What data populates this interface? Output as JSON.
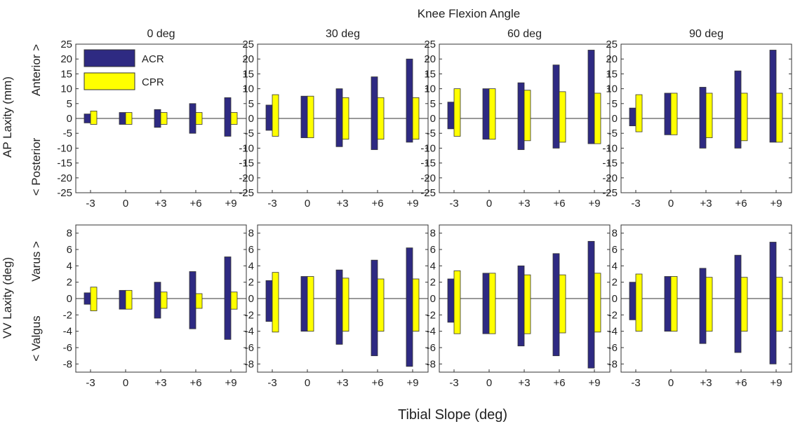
{
  "figure": {
    "title": "Knee Flexion Angle",
    "xlabel": "Tibial Slope (deg)",
    "row_labels": {
      "ap": {
        "main": "AP Laxity (mm)",
        "pos": "Anterior >",
        "neg": "< Posterior"
      },
      "vv": {
        "main": "VV Laxity (deg)",
        "pos": "Varus >",
        "neg": "< Valgus"
      }
    }
  },
  "colors": {
    "ACR": "#2e2a82",
    "CPR": "#ffff00",
    "stroke": "#333333"
  },
  "chart_data": [
    {
      "type": "bar",
      "title": "0 deg",
      "row": "ap",
      "categories": [
        "-3",
        "0",
        "+3",
        "+6",
        "+9"
      ],
      "ylim": [
        -25,
        25
      ],
      "yticks": [
        25,
        20,
        15,
        10,
        5,
        0,
        -5,
        -10,
        -15,
        -20,
        -25
      ],
      "legend": [
        "ACR",
        "CPR"
      ],
      "legend_position": "top-left",
      "series": [
        {
          "name": "ACR",
          "high": [
            1.5,
            2,
            3,
            5,
            7
          ],
          "low": [
            -1.5,
            -2,
            -3,
            -5,
            -6
          ]
        },
        {
          "name": "CPR",
          "high": [
            2.5,
            2,
            2,
            2,
            2
          ],
          "low": [
            -2,
            -2,
            -2,
            -2,
            -2
          ]
        }
      ]
    },
    {
      "type": "bar",
      "title": "30 deg",
      "row": "ap",
      "categories": [
        "-3",
        "0",
        "+3",
        "+6",
        "+9"
      ],
      "ylim": [
        -25,
        25
      ],
      "yticks": [
        25,
        20,
        15,
        10,
        5,
        0,
        -5,
        -10,
        -15,
        -20,
        -25
      ],
      "series": [
        {
          "name": "ACR",
          "high": [
            4.5,
            7.5,
            10,
            14,
            20
          ],
          "low": [
            -4,
            -6.5,
            -9.5,
            -10.5,
            -8
          ]
        },
        {
          "name": "CPR",
          "high": [
            8,
            7.5,
            7,
            7,
            7
          ],
          "low": [
            -6,
            -6.5,
            -7,
            -7,
            -7
          ]
        }
      ]
    },
    {
      "type": "bar",
      "title": "60 deg",
      "row": "ap",
      "categories": [
        "-3",
        "0",
        "+3",
        "+6",
        "+9"
      ],
      "ylim": [
        -25,
        25
      ],
      "yticks": [
        25,
        20,
        15,
        10,
        5,
        0,
        -5,
        -10,
        -15,
        -20,
        -25
      ],
      "series": [
        {
          "name": "ACR",
          "high": [
            5.5,
            10,
            12,
            18,
            23
          ],
          "low": [
            -3.5,
            -7,
            -10.5,
            -10,
            -8.5
          ]
        },
        {
          "name": "CPR",
          "high": [
            10,
            10,
            9.5,
            9,
            8.5
          ],
          "low": [
            -6,
            -7,
            -7.5,
            -8,
            -8.5
          ]
        }
      ]
    },
    {
      "type": "bar",
      "title": "90 deg",
      "row": "ap",
      "categories": [
        "-3",
        "0",
        "+3",
        "+6",
        "+9"
      ],
      "ylim": [
        -25,
        25
      ],
      "yticks": [
        25,
        20,
        15,
        10,
        5,
        0,
        -5,
        -10,
        -15,
        -20,
        -25
      ],
      "series": [
        {
          "name": "ACR",
          "high": [
            3.5,
            8.5,
            10.5,
            16,
            23
          ],
          "low": [
            -2.5,
            -5.5,
            -10,
            -10,
            -8
          ]
        },
        {
          "name": "CPR",
          "high": [
            8,
            8.5,
            8.5,
            8.5,
            8.5
          ],
          "low": [
            -4.5,
            -5.5,
            -6.5,
            -7.5,
            -8
          ]
        }
      ]
    },
    {
      "type": "bar",
      "title": "",
      "row": "vv",
      "categories": [
        "-3",
        "0",
        "+3",
        "+6",
        "+9"
      ],
      "ylim": [
        -9,
        9
      ],
      "yticks": [
        8,
        6,
        4,
        2,
        0,
        -2,
        -4,
        -6,
        -8
      ],
      "series": [
        {
          "name": "ACR",
          "high": [
            0.7,
            1,
            2,
            3.3,
            5.1
          ],
          "low": [
            -0.7,
            -1.3,
            -2.4,
            -3.7,
            -5
          ]
        },
        {
          "name": "CPR",
          "high": [
            1.4,
            1,
            0.8,
            0.6,
            0.8
          ],
          "low": [
            -1.5,
            -1.3,
            -1.2,
            -1.2,
            -1.3
          ]
        }
      ]
    },
    {
      "type": "bar",
      "title": "",
      "row": "vv",
      "categories": [
        "-3",
        "0",
        "+3",
        "+6",
        "+9"
      ],
      "ylim": [
        -9,
        9
      ],
      "yticks": [
        8,
        6,
        4,
        2,
        0,
        -2,
        -4,
        -6,
        -8
      ],
      "series": [
        {
          "name": "ACR",
          "high": [
            2.2,
            2.7,
            3.5,
            4.7,
            6.2
          ],
          "low": [
            -2.8,
            -4,
            -5.6,
            -7,
            -8.3
          ]
        },
        {
          "name": "CPR",
          "high": [
            3.2,
            2.7,
            2.5,
            2.4,
            2.4
          ],
          "low": [
            -4.1,
            -4,
            -4,
            -4,
            -4
          ]
        }
      ]
    },
    {
      "type": "bar",
      "title": "",
      "row": "vv",
      "categories": [
        "-3",
        "0",
        "+3",
        "+6",
        "+9"
      ],
      "ylim": [
        -9,
        9
      ],
      "yticks": [
        8,
        6,
        4,
        2,
        0,
        -2,
        -4,
        -6,
        -8
      ],
      "series": [
        {
          "name": "ACR",
          "high": [
            2.4,
            3.1,
            4,
            5.5,
            7
          ],
          "low": [
            -2.9,
            -4.3,
            -5.8,
            -7,
            -8.5
          ]
        },
        {
          "name": "CPR",
          "high": [
            3.4,
            3.1,
            2.9,
            2.9,
            3.1
          ],
          "low": [
            -4.3,
            -4.3,
            -4.3,
            -4.2,
            -4.1
          ]
        }
      ]
    },
    {
      "type": "bar",
      "title": "",
      "row": "vv",
      "categories": [
        "-3",
        "0",
        "+3",
        "+6",
        "+9"
      ],
      "ylim": [
        -9,
        9
      ],
      "yticks": [
        8,
        6,
        4,
        2,
        0,
        -2,
        -4,
        -6,
        -8
      ],
      "series": [
        {
          "name": "ACR",
          "high": [
            2,
            2.7,
            3.7,
            5.3,
            6.9
          ],
          "low": [
            -2.6,
            -4,
            -5.5,
            -6.6,
            -8
          ]
        },
        {
          "name": "CPR",
          "high": [
            3,
            2.7,
            2.6,
            2.6,
            2.6
          ],
          "low": [
            -4,
            -4,
            -4,
            -4,
            -4
          ]
        }
      ]
    }
  ]
}
